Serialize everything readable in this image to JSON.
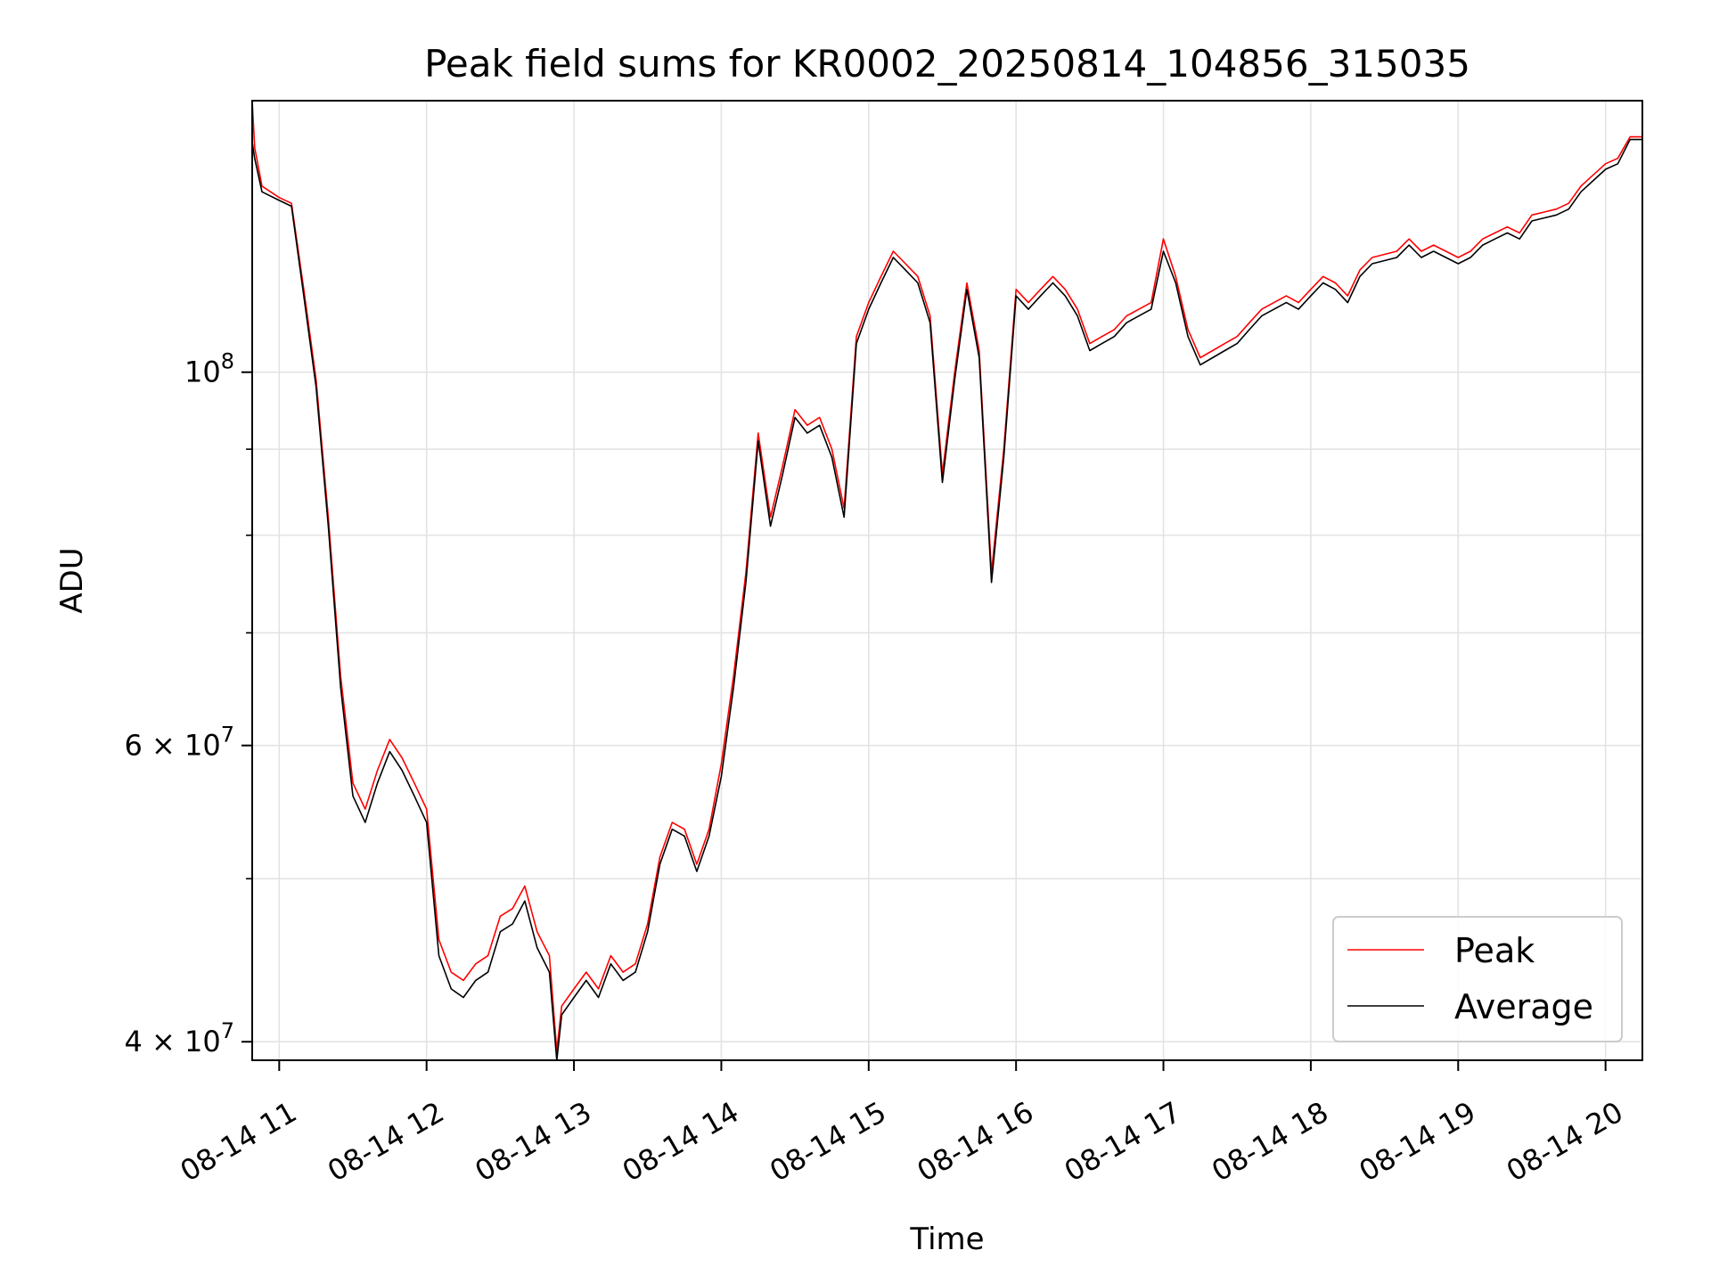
{
  "chart_data": {
    "type": "line",
    "title": "Peak field sums for KR0002_20250814_104856_315035",
    "xlabel": "Time",
    "ylabel": "ADU",
    "yscale": "log",
    "xlim": [
      "08-14 10:49",
      "08-14 20:15"
    ],
    "ylim": [
      39000000,
      145000000
    ],
    "grid": true,
    "legend_position": "lower-right",
    "x_ticks": [
      "08-14 11",
      "08-14 12",
      "08-14 13",
      "08-14 14",
      "08-14 15",
      "08-14 16",
      "08-14 17",
      "08-14 18",
      "08-14 19",
      "08-14 20"
    ],
    "y_major_ticks": [
      {
        "value": 40000000,
        "base": "4",
        "exp": "7"
      },
      {
        "value": 60000000,
        "base": "6",
        "exp": "7"
      },
      {
        "value": 100000000,
        "base": "",
        "exp": "8"
      }
    ],
    "y_minor_ticks": [
      50000000,
      70000000,
      80000000,
      90000000
    ],
    "colors": {
      "peak": "#ff0000",
      "average": "#000000"
    },
    "series": [
      {
        "name": "Peak",
        "color": "#ff0000",
        "x": [
          "08-14 10:49",
          "08-14 10:50",
          "08-14 10:53",
          "08-14 11:00",
          "08-14 11:05",
          "08-14 11:10",
          "08-14 11:15",
          "08-14 11:20",
          "08-14 11:25",
          "08-14 11:30",
          "08-14 11:35",
          "08-14 11:40",
          "08-14 11:45",
          "08-14 11:50",
          "08-14 11:55",
          "08-14 12:00",
          "08-14 12:05",
          "08-14 12:10",
          "08-14 12:15",
          "08-14 12:20",
          "08-14 12:25",
          "08-14 12:30",
          "08-14 12:35",
          "08-14 12:40",
          "08-14 12:45",
          "08-14 12:50",
          "08-14 12:53",
          "08-14 12:55",
          "08-14 13:00",
          "08-14 13:05",
          "08-14 13:10",
          "08-14 13:15",
          "08-14 13:20",
          "08-14 13:25",
          "08-14 13:30",
          "08-14 13:35",
          "08-14 13:40",
          "08-14 13:45",
          "08-14 13:50",
          "08-14 13:55",
          "08-14 14:00",
          "08-14 14:05",
          "08-14 14:10",
          "08-14 14:15",
          "08-14 14:20",
          "08-14 14:25",
          "08-14 14:30",
          "08-14 14:35",
          "08-14 14:40",
          "08-14 14:45",
          "08-14 14:50",
          "08-14 14:55",
          "08-14 15:00",
          "08-14 15:05",
          "08-14 15:10",
          "08-14 15:15",
          "08-14 15:20",
          "08-14 15:25",
          "08-14 15:30",
          "08-14 15:35",
          "08-14 15:40",
          "08-14 15:45",
          "08-14 15:50",
          "08-14 15:55",
          "08-14 16:00",
          "08-14 16:05",
          "08-14 16:10",
          "08-14 16:15",
          "08-14 16:20",
          "08-14 16:25",
          "08-14 16:30",
          "08-14 16:35",
          "08-14 16:40",
          "08-14 16:45",
          "08-14 16:50",
          "08-14 16:55",
          "08-14 17:00",
          "08-14 17:05",
          "08-14 17:10",
          "08-14 17:15",
          "08-14 17:20",
          "08-14 17:25",
          "08-14 17:30",
          "08-14 17:35",
          "08-14 17:40",
          "08-14 17:45",
          "08-14 17:50",
          "08-14 17:55",
          "08-14 18:00",
          "08-14 18:05",
          "08-14 18:10",
          "08-14 18:15",
          "08-14 18:20",
          "08-14 18:25",
          "08-14 18:30",
          "08-14 18:35",
          "08-14 18:40",
          "08-14 18:45",
          "08-14 18:50",
          "08-14 18:55",
          "08-14 19:00",
          "08-14 19:05",
          "08-14 19:10",
          "08-14 19:15",
          "08-14 19:20",
          "08-14 19:25",
          "08-14 19:30",
          "08-14 19:35",
          "08-14 19:40",
          "08-14 19:45",
          "08-14 19:50",
          "08-14 19:55",
          "08-14 20:00",
          "08-14 20:05",
          "08-14 20:10",
          "08-14 20:15"
        ],
        "values": [
          145000000,
          136000000,
          129000000,
          127000000,
          126000000,
          112000000,
          99000000,
          82000000,
          66000000,
          57000000,
          55000000,
          58000000,
          60500000,
          59000000,
          57000000,
          55000000,
          46000000,
          44000000,
          43500000,
          44500000,
          45000000,
          47500000,
          48000000,
          49500000,
          46500000,
          45000000,
          39500000,
          42000000,
          43000000,
          44000000,
          43000000,
          45000000,
          44000000,
          44500000,
          47000000,
          51500000,
          54000000,
          53500000,
          51000000,
          53500000,
          58500000,
          66000000,
          76000000,
          92000000,
          82000000,
          88000000,
          95000000,
          93000000,
          94000000,
          90000000,
          83000000,
          105000000,
          110000000,
          114000000,
          118000000,
          116000000,
          114000000,
          108000000,
          87000000,
          100000000,
          113000000,
          103000000,
          76000000,
          90000000,
          112000000,
          110000000,
          112000000,
          114000000,
          112000000,
          109000000,
          104000000,
          105000000,
          106000000,
          108000000,
          109000000,
          110000000,
          120000000,
          114000000,
          106000000,
          102000000,
          103000000,
          104000000,
          105000000,
          107000000,
          109000000,
          110000000,
          111000000,
          110000000,
          112000000,
          114000000,
          113000000,
          111000000,
          115000000,
          117000000,
          117500000,
          118000000,
          120000000,
          118000000,
          119000000,
          118000000,
          117000000,
          118000000,
          120000000,
          121000000,
          122000000,
          121000000,
          124000000,
          124500000,
          125000000,
          126000000,
          129000000,
          131000000,
          133000000,
          134000000,
          138000000,
          138000000
        ]
      },
      {
        "name": "Average",
        "color": "#000000",
        "x": [
          "08-14 10:49",
          "08-14 10:50",
          "08-14 10:53",
          "08-14 11:00",
          "08-14 11:05",
          "08-14 11:10",
          "08-14 11:15",
          "08-14 11:20",
          "08-14 11:25",
          "08-14 11:30",
          "08-14 11:35",
          "08-14 11:40",
          "08-14 11:45",
          "08-14 11:50",
          "08-14 11:55",
          "08-14 12:00",
          "08-14 12:05",
          "08-14 12:10",
          "08-14 12:15",
          "08-14 12:20",
          "08-14 12:25",
          "08-14 12:30",
          "08-14 12:35",
          "08-14 12:40",
          "08-14 12:45",
          "08-14 12:50",
          "08-14 12:53",
          "08-14 12:55",
          "08-14 13:00",
          "08-14 13:05",
          "08-14 13:10",
          "08-14 13:15",
          "08-14 13:20",
          "08-14 13:25",
          "08-14 13:30",
          "08-14 13:35",
          "08-14 13:40",
          "08-14 13:45",
          "08-14 13:50",
          "08-14 13:55",
          "08-14 14:00",
          "08-14 14:05",
          "08-14 14:10",
          "08-14 14:15",
          "08-14 14:20",
          "08-14 14:25",
          "08-14 14:30",
          "08-14 14:35",
          "08-14 14:40",
          "08-14 14:45",
          "08-14 14:50",
          "08-14 14:55",
          "08-14 15:00",
          "08-14 15:05",
          "08-14 15:10",
          "08-14 15:15",
          "08-14 15:20",
          "08-14 15:25",
          "08-14 15:30",
          "08-14 15:35",
          "08-14 15:40",
          "08-14 15:45",
          "08-14 15:50",
          "08-14 15:55",
          "08-14 16:00",
          "08-14 16:05",
          "08-14 16:10",
          "08-14 16:15",
          "08-14 16:20",
          "08-14 16:25",
          "08-14 16:30",
          "08-14 16:35",
          "08-14 16:40",
          "08-14 16:45",
          "08-14 16:50",
          "08-14 16:55",
          "08-14 17:00",
          "08-14 17:05",
          "08-14 17:10",
          "08-14 17:15",
          "08-14 17:20",
          "08-14 17:25",
          "08-14 17:30",
          "08-14 17:35",
          "08-14 17:40",
          "08-14 17:45",
          "08-14 17:50",
          "08-14 17:55",
          "08-14 18:00",
          "08-14 18:05",
          "08-14 18:10",
          "08-14 18:15",
          "08-14 18:20",
          "08-14 18:25",
          "08-14 18:30",
          "08-14 18:35",
          "08-14 18:40",
          "08-14 18:45",
          "08-14 18:50",
          "08-14 18:55",
          "08-14 19:00",
          "08-14 19:05",
          "08-14 19:10",
          "08-14 19:15",
          "08-14 19:20",
          "08-14 19:25",
          "08-14 19:30",
          "08-14 19:35",
          "08-14 19:40",
          "08-14 19:45",
          "08-14 19:50",
          "08-14 19:55",
          "08-14 20:00",
          "08-14 20:05",
          "08-14 20:10",
          "08-14 20:15"
        ],
        "values": [
          137000000,
          134000000,
          128000000,
          126500000,
          125500000,
          111000000,
          98000000,
          81000000,
          65000000,
          56000000,
          54000000,
          57000000,
          59500000,
          58000000,
          56000000,
          54000000,
          45000000,
          43000000,
          42500000,
          43500000,
          44000000,
          46500000,
          47000000,
          48500000,
          45500000,
          44000000,
          39000000,
          41500000,
          42500000,
          43500000,
          42500000,
          44500000,
          43500000,
          44000000,
          46500000,
          51000000,
          53500000,
          53000000,
          50500000,
          53000000,
          57500000,
          65000000,
          75000000,
          91000000,
          81000000,
          87000000,
          94000000,
          92000000,
          93000000,
          89000000,
          82000000,
          104000000,
          109000000,
          113000000,
          117000000,
          115000000,
          113000000,
          107000000,
          86000000,
          99000000,
          112000000,
          102000000,
          75000000,
          89000000,
          111000000,
          109000000,
          111000000,
          113000000,
          111000000,
          108000000,
          103000000,
          104000000,
          105000000,
          107000000,
          108000000,
          109000000,
          118000000,
          113000000,
          105000000,
          101000000,
          102000000,
          103000000,
          104000000,
          106000000,
          108000000,
          109000000,
          110000000,
          109000000,
          111000000,
          113000000,
          112000000,
          110000000,
          114000000,
          116000000,
          116500000,
          117000000,
          119000000,
          117000000,
          118000000,
          117000000,
          116000000,
          117000000,
          119000000,
          120000000,
          121000000,
          120000000,
          123000000,
          123500000,
          124000000,
          125000000,
          128000000,
          130000000,
          132000000,
          133000000,
          137500000,
          137500000
        ]
      }
    ]
  }
}
